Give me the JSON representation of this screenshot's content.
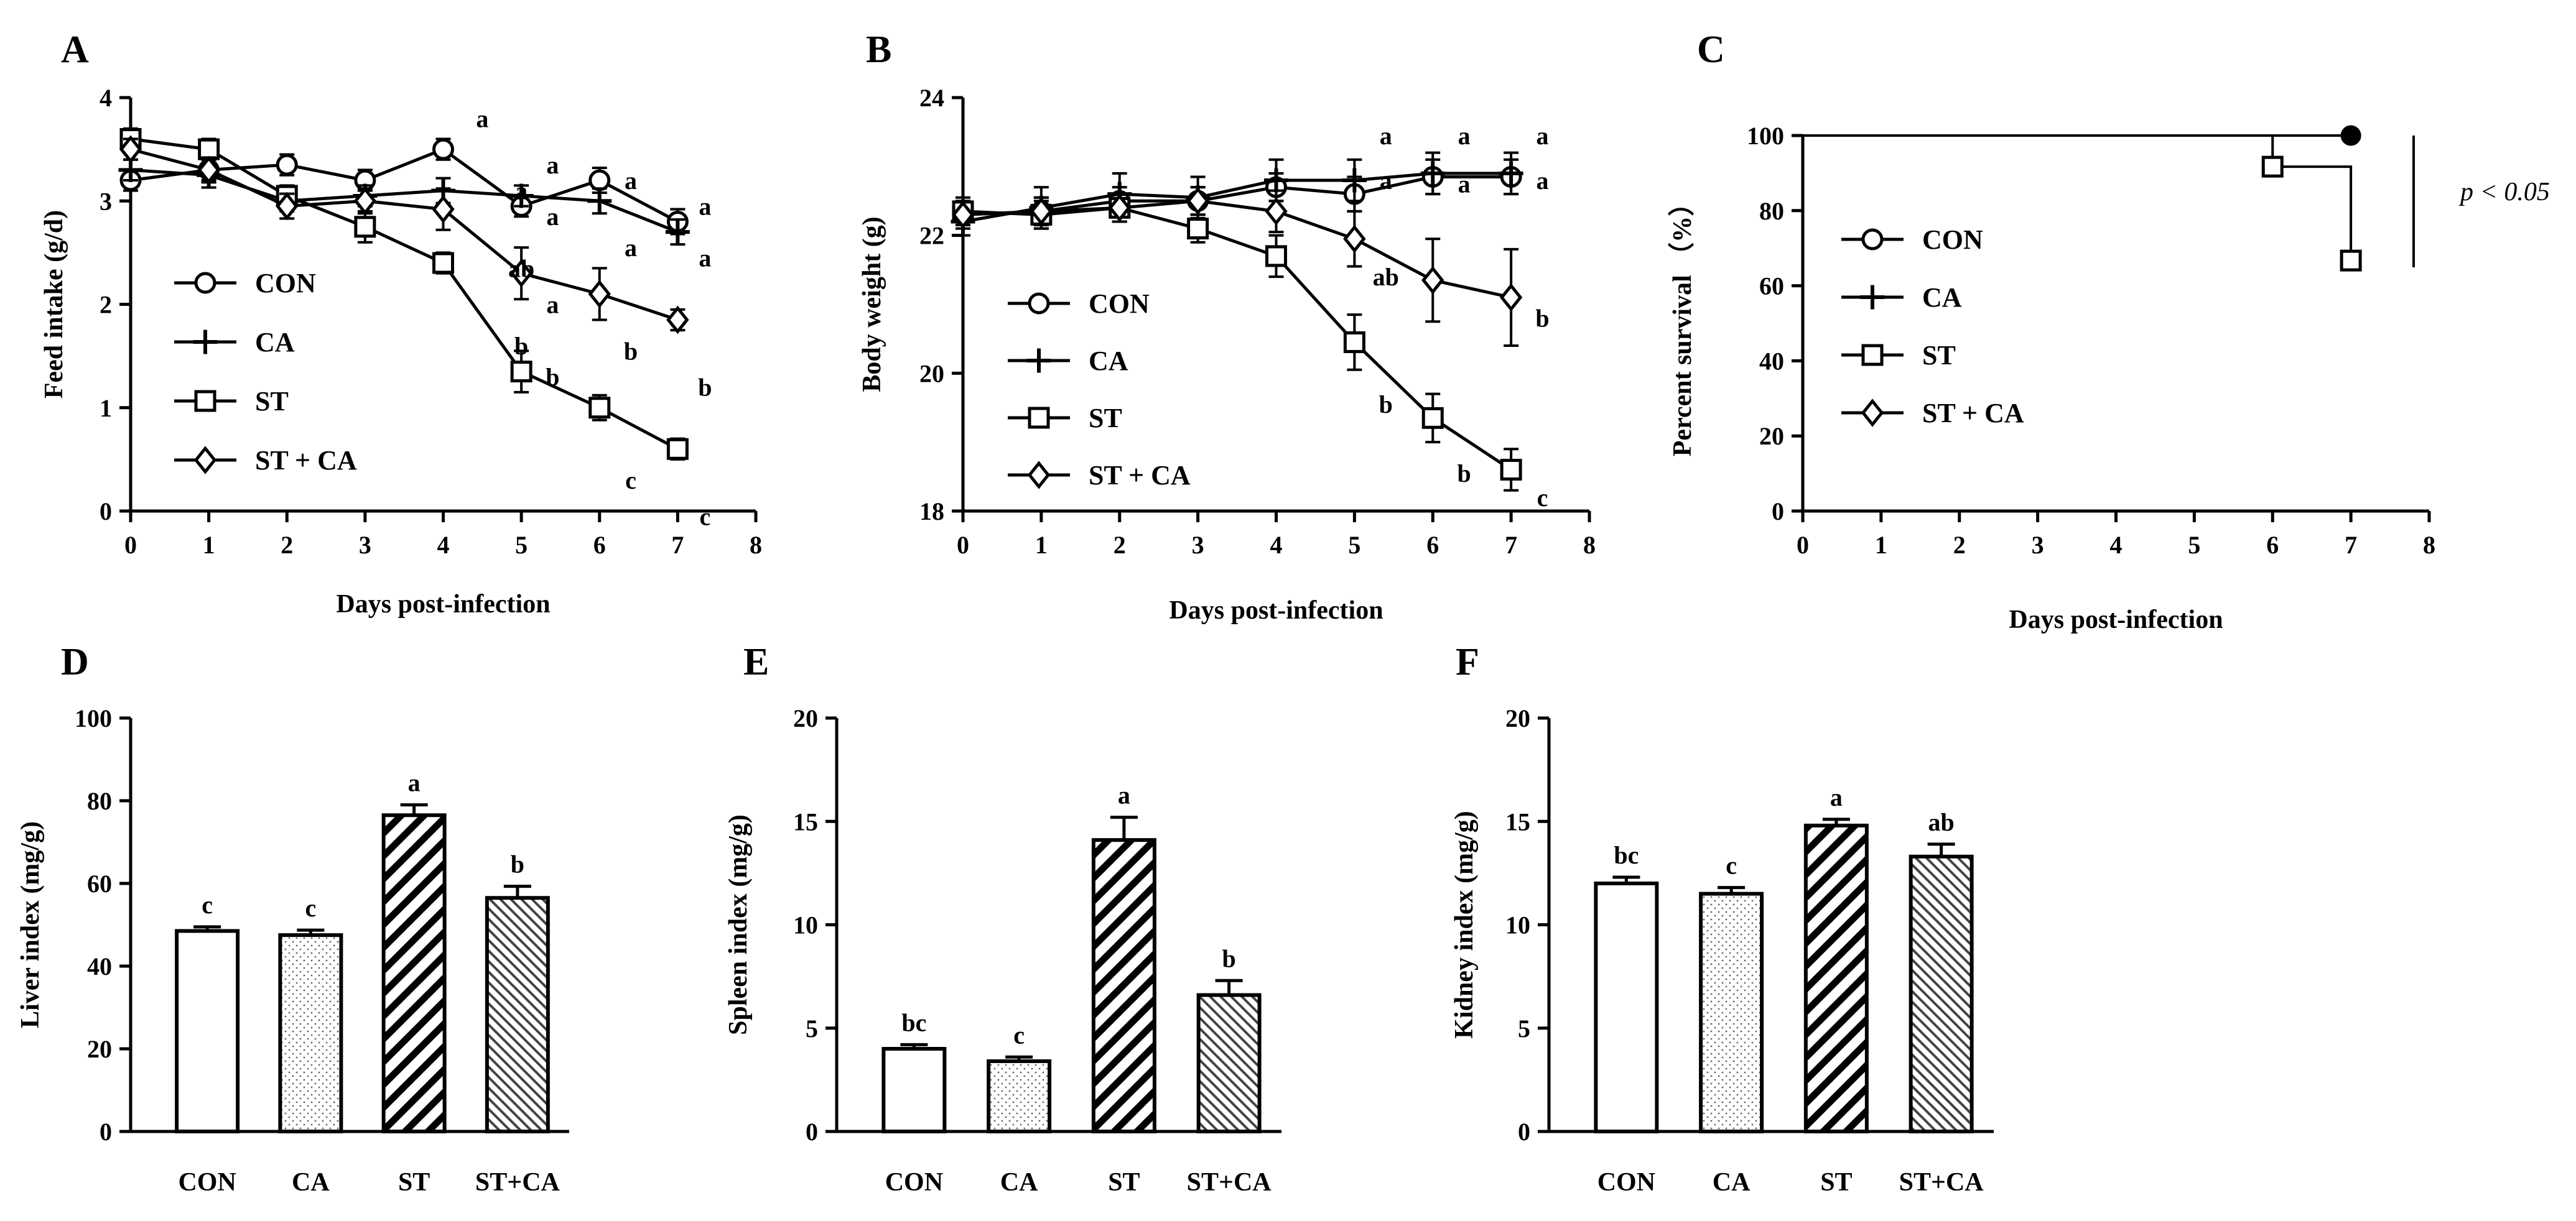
{
  "panels": [
    {
      "letter": "A",
      "xlabel": "Days post-infection",
      "ylabel": "Feed intake (g/d)"
    },
    {
      "letter": "B",
      "xlabel": "Days post-infection",
      "ylabel": "Body weight (g)"
    },
    {
      "letter": "C",
      "xlabel": "Days post-infection",
      "ylabel": "Percent survival （%）",
      "annotation": "p < 0.05"
    },
    {
      "letter": "D",
      "ylabel": "Liver index (mg/g)"
    },
    {
      "letter": "E",
      "ylabel": "Spleen index (mg/g)"
    },
    {
      "letter": "F",
      "ylabel": "Kidney index (mg/g)"
    }
  ],
  "chart_data": [
    {
      "type": "line",
      "x": [
        0,
        1,
        2,
        3,
        4,
        5,
        6,
        7
      ],
      "xlim": [
        0,
        8
      ],
      "xticks": [
        0,
        1,
        2,
        3,
        4,
        5,
        6,
        7,
        8
      ],
      "ylim": [
        0,
        4
      ],
      "yticks": [
        0,
        1,
        2,
        3,
        4
      ],
      "xlabel": "Days post-infection",
      "ylabel": "Feed intake (g/d)",
      "legend_position": "left",
      "series": [
        {
          "name": "CON",
          "marker": "circle",
          "values": [
            3.2,
            3.3,
            3.35,
            3.2,
            3.5,
            2.95,
            3.2,
            2.8
          ],
          "errors": [
            0.1,
            0.1,
            0.1,
            0.1,
            0.1,
            0.1,
            0.12,
            0.12
          ]
        },
        {
          "name": "CA",
          "marker": "plus",
          "values": [
            3.3,
            3.25,
            3.0,
            3.05,
            3.1,
            3.05,
            3.0,
            2.7
          ],
          "errors": [
            0.1,
            0.12,
            0.1,
            0.1,
            0.12,
            0.1,
            0.12,
            0.12
          ]
        },
        {
          "name": "ST",
          "marker": "square",
          "values": [
            3.6,
            3.5,
            3.05,
            2.75,
            2.4,
            1.35,
            1.0,
            0.6
          ],
          "errors": [
            0.1,
            0.1,
            0.1,
            0.15,
            0.1,
            0.2,
            0.12,
            0.1
          ]
        },
        {
          "name": "ST + CA",
          "marker": "diamond",
          "values": [
            3.5,
            3.3,
            2.95,
            3.0,
            2.92,
            2.3,
            2.1,
            1.85
          ],
          "errors": [
            0.1,
            0.12,
            0.12,
            0.12,
            0.2,
            0.25,
            0.25,
            0.1
          ]
        }
      ],
      "labels": [
        {
          "x": 5,
          "y": 3.1,
          "text": "a"
        },
        {
          "x": 5,
          "y": 2.35,
          "text": "ab"
        },
        {
          "x": 5,
          "y": 1.6,
          "text": "b"
        },
        {
          "x": 5.4,
          "y": 3.35,
          "text": "a"
        },
        {
          "x": 5.4,
          "y": 2.85,
          "text": "a"
        },
        {
          "x": 5.4,
          "y": 2.0,
          "text": "a"
        },
        {
          "x": 5.4,
          "y": 1.3,
          "text": "b"
        },
        {
          "x": 6.4,
          "y": 3.2,
          "text": "a"
        },
        {
          "x": 6.4,
          "y": 2.55,
          "text": "a"
        },
        {
          "x": 6.4,
          "y": 1.55,
          "text": "b"
        },
        {
          "x": 6.4,
          "y": 0.3,
          "text": "c"
        },
        {
          "x": 7.35,
          "y": 2.95,
          "text": "a"
        },
        {
          "x": 7.35,
          "y": 2.45,
          "text": "a"
        },
        {
          "x": 7.35,
          "y": 1.2,
          "text": "b"
        },
        {
          "x": 7.35,
          "y": -0.05,
          "text": "c"
        },
        {
          "x": 4.5,
          "y": 3.8,
          "text": "a"
        }
      ]
    },
    {
      "type": "line",
      "x": [
        0,
        1,
        2,
        3,
        4,
        5,
        6,
        7
      ],
      "xlim": [
        0,
        8
      ],
      "xticks": [
        0,
        1,
        2,
        3,
        4,
        5,
        6,
        7,
        8
      ],
      "ylim": [
        18,
        24
      ],
      "yticks": [
        18,
        20,
        22,
        24
      ],
      "xlabel": "Days post-infection",
      "ylabel": "Body weight (g)",
      "legend_position": "left",
      "series": [
        {
          "name": "CON",
          "marker": "circle",
          "values": [
            22.3,
            22.35,
            22.5,
            22.5,
            22.7,
            22.6,
            22.85,
            22.85
          ],
          "errors": [
            0.15,
            0.2,
            0.2,
            0.2,
            0.2,
            0.25,
            0.25,
            0.25
          ]
        },
        {
          "name": "CA",
          "marker": "plus",
          "values": [
            22.2,
            22.4,
            22.6,
            22.55,
            22.8,
            22.8,
            22.9,
            22.9
          ],
          "errors": [
            0.2,
            0.3,
            0.3,
            0.3,
            0.3,
            0.3,
            0.3,
            0.3
          ]
        },
        {
          "name": "ST",
          "marker": "square",
          "values": [
            22.35,
            22.3,
            22.4,
            22.1,
            21.7,
            20.45,
            19.35,
            18.6
          ],
          "errors": [
            0.2,
            0.2,
            0.2,
            0.2,
            0.3,
            0.4,
            0.35,
            0.3
          ]
        },
        {
          "name": "ST + CA",
          "marker": "diamond",
          "values": [
            22.3,
            22.35,
            22.4,
            22.5,
            22.35,
            21.95,
            21.35,
            21.1
          ],
          "errors": [
            0.2,
            0.2,
            0.2,
            0.2,
            0.3,
            0.4,
            0.6,
            0.7
          ]
        }
      ],
      "labels": [
        {
          "x": 5.4,
          "y": 23.45,
          "text": "a"
        },
        {
          "x": 5.4,
          "y": 22.8,
          "text": "a"
        },
        {
          "x": 5.4,
          "y": 21.4,
          "text": "ab"
        },
        {
          "x": 5.4,
          "y": 19.55,
          "text": "b"
        },
        {
          "x": 6.4,
          "y": 23.45,
          "text": "a"
        },
        {
          "x": 6.4,
          "y": 22.75,
          "text": "a"
        },
        {
          "x": 6.4,
          "y": 18.55,
          "text": "b"
        },
        {
          "x": 7.4,
          "y": 23.45,
          "text": "a"
        },
        {
          "x": 7.4,
          "y": 22.8,
          "text": "a"
        },
        {
          "x": 7.4,
          "y": 20.8,
          "text": "b"
        },
        {
          "x": 7.4,
          "y": 18.2,
          "text": "c"
        }
      ]
    },
    {
      "type": "line",
      "subtype": "survival",
      "xlim": [
        0,
        8
      ],
      "xticks": [
        0,
        1,
        2,
        3,
        4,
        5,
        6,
        7,
        8
      ],
      "ylim": [
        0,
        100
      ],
      "yticks": [
        0,
        20,
        40,
        60,
        80,
        100
      ],
      "xlabel": "Days post-infection",
      "ylabel": "Percent survival （%）",
      "legend_position": "left",
      "series": [
        {
          "name": "CON",
          "marker": "circle",
          "x": [
            0,
            7
          ],
          "values": [
            100,
            100
          ]
        },
        {
          "name": "CA",
          "marker": "plus",
          "x": [
            0,
            7
          ],
          "values": [
            100,
            100
          ]
        },
        {
          "name": "ST",
          "marker": "square",
          "x": [
            0,
            6,
            6,
            7,
            7
          ],
          "values": [
            100,
            100,
            91.7,
            91.7,
            66.7
          ],
          "markers_at": [
            [
              6,
              91.7
            ],
            [
              7,
              66.7
            ]
          ]
        },
        {
          "name": "ST + CA",
          "marker": "diamond",
          "x": [
            0,
            7
          ],
          "values": [
            100,
            100
          ]
        }
      ],
      "annotation": "p < 0.05"
    },
    {
      "type": "bar",
      "categories": [
        "CON",
        "CA",
        "ST",
        "ST+CA"
      ],
      "values": [
        48.5,
        47.5,
        76.5,
        56.5
      ],
      "errors": [
        1.0,
        1.2,
        2.5,
        2.8
      ],
      "letters": [
        "c",
        "c",
        "a",
        "b"
      ],
      "ylim": [
        0,
        100
      ],
      "yticks": [
        0,
        20,
        40,
        60,
        80,
        100
      ],
      "ylabel": "Liver index (mg/g)"
    },
    {
      "type": "bar",
      "categories": [
        "CON",
        "CA",
        "ST",
        "ST+CA"
      ],
      "values": [
        4.0,
        3.4,
        14.1,
        6.6
      ],
      "errors": [
        0.2,
        0.2,
        1.1,
        0.7
      ],
      "letters": [
        "bc",
        "c",
        "a",
        "b"
      ],
      "ylim": [
        0,
        20
      ],
      "yticks": [
        0,
        5,
        10,
        15,
        20
      ],
      "ylabel": "Spleen index (mg/g)"
    },
    {
      "type": "bar",
      "categories": [
        "CON",
        "CA",
        "ST",
        "ST+CA"
      ],
      "values": [
        12.0,
        11.5,
        14.8,
        13.3
      ],
      "errors": [
        0.3,
        0.3,
        0.3,
        0.6
      ],
      "letters": [
        "bc",
        "c",
        "a",
        "ab"
      ],
      "ylim": [
        0,
        20
      ],
      "yticks": [
        0,
        5,
        10,
        15,
        20
      ],
      "ylabel": "Kidney index (mg/g)"
    }
  ]
}
